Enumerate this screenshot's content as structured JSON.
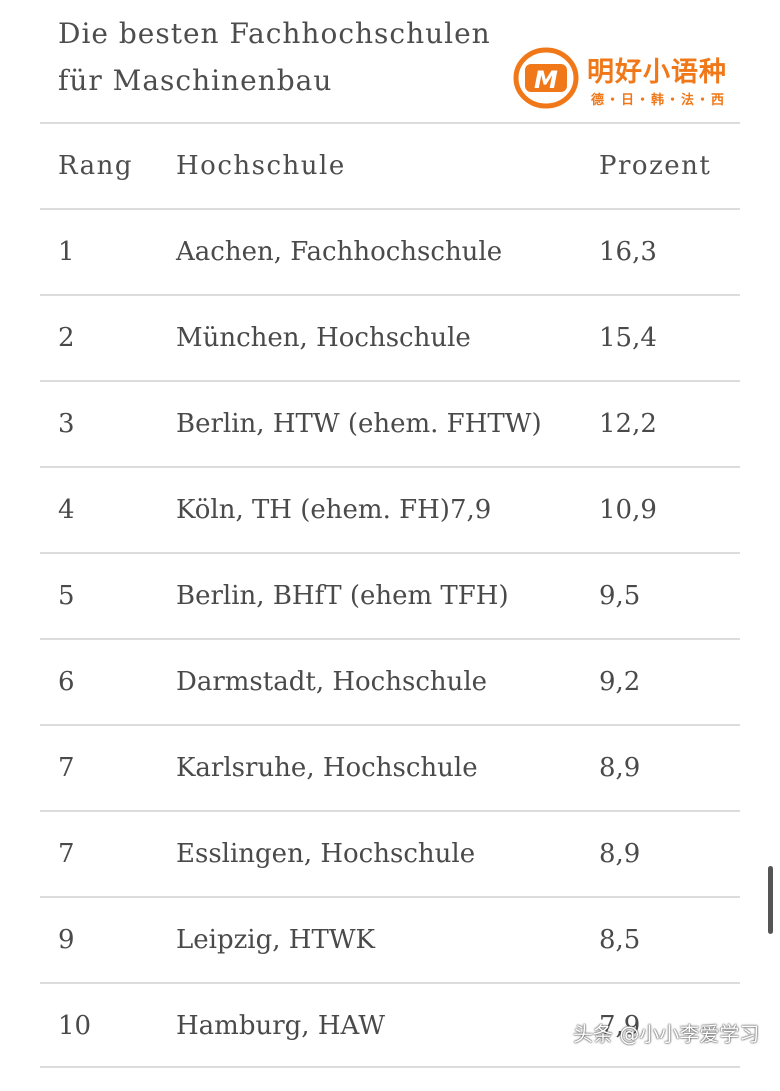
{
  "title": "Die besten Fachhochschulen für Maschinenbau",
  "logo": {
    "name": "明好小语种",
    "sub": "德・日・韩・法・西",
    "mark_letter": "M",
    "color": "#f07818"
  },
  "table": {
    "headers": {
      "rang": "Rang",
      "school": "Hochschule",
      "percent": "Prozent"
    },
    "rows": [
      {
        "rang": "1",
        "school": "Aachen, Fachhochschule",
        "percent": "16,3"
      },
      {
        "rang": "2",
        "school": "München, Hochschule",
        "percent": "15,4"
      },
      {
        "rang": "3",
        "school": "Berlin, HTW (ehem. FHTW)",
        "percent": "12,2"
      },
      {
        "rang": "4",
        "school": "Köln, TH (ehem. FH)7,9",
        "percent": "10,9"
      },
      {
        "rang": "5",
        "school": "Berlin, BHfT (ehem TFH)",
        "percent": "9,5"
      },
      {
        "rang": "6",
        "school": "Darmstadt, Hochschule",
        "percent": "9,2"
      },
      {
        "rang": "7",
        "school": "Karlsruhe, Hochschule",
        "percent": "8,9"
      },
      {
        "rang": "7",
        "school": "Esslingen, Hochschule",
        "percent": "8,9"
      },
      {
        "rang": "9",
        "school": "Leipzig, HTWK",
        "percent": "8,5"
      },
      {
        "rang": "10",
        "school": "Hamburg, HAW",
        "percent": "7,9"
      }
    ]
  },
  "watermark": "头条 @小小李爱学习"
}
